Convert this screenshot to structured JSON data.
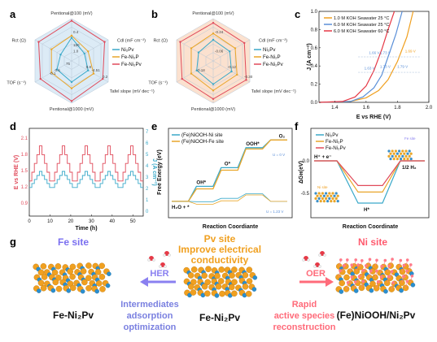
{
  "colors": {
    "niPv": "#3aa9c9",
    "fePv": "#e9a62a",
    "fePvRed": "#e04a5a",
    "blue": "#5a8fd8",
    "orange": "#f0a020",
    "red": "#e63946",
    "hexBlue": "#dcebf6",
    "hexOrange": "#fbe1cf"
  },
  "panels": {
    "a": "a",
    "b": "b",
    "c": "c",
    "d": "d",
    "e": "e",
    "f": "f",
    "g": "g"
  },
  "chart_data": [
    {
      "id": "a",
      "type": "radar",
      "axes": [
        "Pentional@100 (mV)",
        "Cdl (mF cm⁻²)",
        "Tafel slope (mV dec⁻¹)",
        "Pentional@1000 (mV)",
        "TOF (s⁻¹)",
        "Rct (Ω)"
      ],
      "tick_labels": [
        "1.0",
        "0.8",
        "0.6",
        "0.4",
        "0.2",
        "75",
        "150",
        "-4.51",
        "-0.1"
      ],
      "series": [
        {
          "name": "Ni₂Pv",
          "values": [
            0.55,
            0.35,
            0.45,
            0.5,
            0.4,
            0.3
          ]
        },
        {
          "name": "Fe-Ni₂P",
          "values": [
            0.6,
            0.45,
            0.6,
            0.65,
            0.55,
            0.55
          ]
        },
        {
          "name": "Fe-Ni₂Pv",
          "values": [
            0.95,
            0.9,
            0.85,
            0.95,
            0.85,
            0.9
          ]
        }
      ]
    },
    {
      "id": "b",
      "type": "radar",
      "axes": [
        "Pentional@100 (mV)",
        "Cdl (mF cm⁻²)",
        "Tafel slope (mV dec⁻¹)",
        "Pentional@1000 (mV)",
        "TOF (s⁻¹)",
        "Rct (Ω)"
      ],
      "tick_labels": [
        "-0.06",
        "-0.12",
        "-0.18",
        "-0.24",
        "-0.30"
      ],
      "series": [
        {
          "name": "Ni₂Pv",
          "values": [
            0.5,
            0.45,
            0.5,
            0.55,
            0.45,
            0.4
          ]
        },
        {
          "name": "Fe-Ni₂P",
          "values": [
            0.65,
            0.6,
            0.65,
            0.7,
            0.6,
            0.6
          ]
        },
        {
          "name": "Fe-Ni₂Pv",
          "values": [
            0.9,
            0.85,
            0.9,
            0.9,
            0.85,
            0.9
          ]
        }
      ]
    },
    {
      "id": "c",
      "type": "line",
      "xlabel": "E vs RHE (V)",
      "ylabel": "J (A cm⁻²)",
      "xlim": [
        1.3,
        2.0
      ],
      "ylim": [
        0,
        1.0
      ],
      "xticks": [
        "1.4",
        "1.6",
        "1.8",
        "2.0"
      ],
      "yticks": [
        "0.0",
        "0.2",
        "0.4",
        "0.6",
        "0.8",
        "1.0"
      ],
      "series": [
        {
          "name": "1.0 M KOH Seawater 25 °C",
          "x": [
            1.3,
            1.5,
            1.6,
            1.68,
            1.74,
            1.8,
            1.86,
            1.9
          ],
          "y": [
            0,
            0.01,
            0.05,
            0.13,
            0.25,
            0.45,
            0.72,
            1.0
          ]
        },
        {
          "name": "6.0 M KOH Seawater 25 °C",
          "x": [
            1.3,
            1.5,
            1.58,
            1.65,
            1.7,
            1.74,
            1.79,
            1.83
          ],
          "y": [
            0,
            0.01,
            0.06,
            0.16,
            0.3,
            0.5,
            0.75,
            1.0
          ]
        },
        {
          "name": "6.0 M KOH Seawater 60 °C",
          "x": [
            1.3,
            1.45,
            1.53,
            1.6,
            1.65,
            1.7,
            1.74,
            1.78
          ],
          "y": [
            0,
            0.01,
            0.06,
            0.18,
            0.35,
            0.58,
            0.8,
            1.0
          ]
        }
      ],
      "annotations": [
        "1.66 V",
        "1.73 V",
        "1.69 V",
        "1.63 V",
        "1.73 V",
        "1.79 V"
      ]
    },
    {
      "id": "d",
      "type": "line",
      "xlabel": "Time (h)",
      "ylabel_left": "E vs RHE (V)",
      "ylabel_right": "J (A cm⁻²)",
      "xlim": [
        0,
        55
      ],
      "xticks": [
        "0",
        "10",
        "20",
        "30",
        "40",
        "50"
      ],
      "yticks_left": [
        "0.9",
        "1.2",
        "1.5",
        "1.8",
        "2.1"
      ],
      "yticks_right": [
        "0",
        "1",
        "2",
        "3",
        "4",
        "5",
        "6",
        "7"
      ],
      "series": [
        {
          "name": "E",
          "steps": [
            1.4,
            1.55,
            1.7,
            1.85,
            2.0,
            1.85,
            1.7,
            1.55,
            1.4
          ]
        },
        {
          "name": "J",
          "steps": [
            0.5,
            1.0,
            1.5,
            2.0,
            2.5,
            2.0,
            1.5,
            1.0,
            0.5
          ]
        }
      ],
      "cycles": 5
    },
    {
      "id": "e",
      "type": "line",
      "xlabel": "Reaction Coordiante",
      "ylabel": "Free Energy (eV)",
      "categories": [
        "H₂O + *",
        "OH*",
        "O*",
        "OOH*",
        "O₂"
      ],
      "series": [
        {
          "name": "(Fe)NiOOH-Ni site",
          "values": [
            0,
            1.2,
            2.7,
            4.3,
            4.92
          ]
        },
        {
          "name": "(Fe)NiOOH-Fe site",
          "values": [
            0,
            1.0,
            2.5,
            4.2,
            4.92
          ]
        },
        {
          "name": "(Fe)NiOOH-Ni site U=1.23 V",
          "values": [
            0,
            -0.03,
            0.24,
            0.61,
            0
          ]
        },
        {
          "name": "(Fe)NiOOH-Fe site U=1.23 V",
          "values": [
            0,
            -0.23,
            0.04,
            0.51,
            0
          ]
        }
      ],
      "annotations": [
        "U = 0 V",
        "U = 1.23 V"
      ]
    },
    {
      "id": "f",
      "type": "line",
      "xlabel": "Reaction Coordinate",
      "ylabel": "ΔGʜ(eV)",
      "yticks": [
        "0.0",
        "-0.5"
      ],
      "categories": [
        "H⁺ + e⁻",
        "H*",
        "1/2 H₂"
      ],
      "series": [
        {
          "name": "Ni₂Pv",
          "values": [
            0,
            -0.65,
            0
          ]
        },
        {
          "name": "Fe-Ni₂P",
          "values": [
            0,
            -0.48,
            0
          ]
        },
        {
          "name": "Fe-Ni₂Pv",
          "values": [
            0,
            -0.38,
            0
          ]
        }
      ],
      "annotations": [
        "Fe site",
        "Ni site"
      ]
    }
  ],
  "panel_g": {
    "fe_site": "Fe site",
    "pv_site_line1": "Pv site",
    "pv_site_line2": "Improve electrical",
    "pv_site_line3": "conductivity",
    "ni_site": "Ni site",
    "her": "HER",
    "oer": "OER",
    "left_label": "Fe-Ni₂Pv",
    "center_label": "Fe-Ni₂Pv",
    "right_label": "(Fe)NiOOH/Ni₂Pv",
    "left_text_1": "Intermediates",
    "left_text_2": "adsorption",
    "left_text_3": "optimization",
    "right_text_1": "Rapid",
    "right_text_2": "active species",
    "right_text_3": "reconstruction"
  }
}
